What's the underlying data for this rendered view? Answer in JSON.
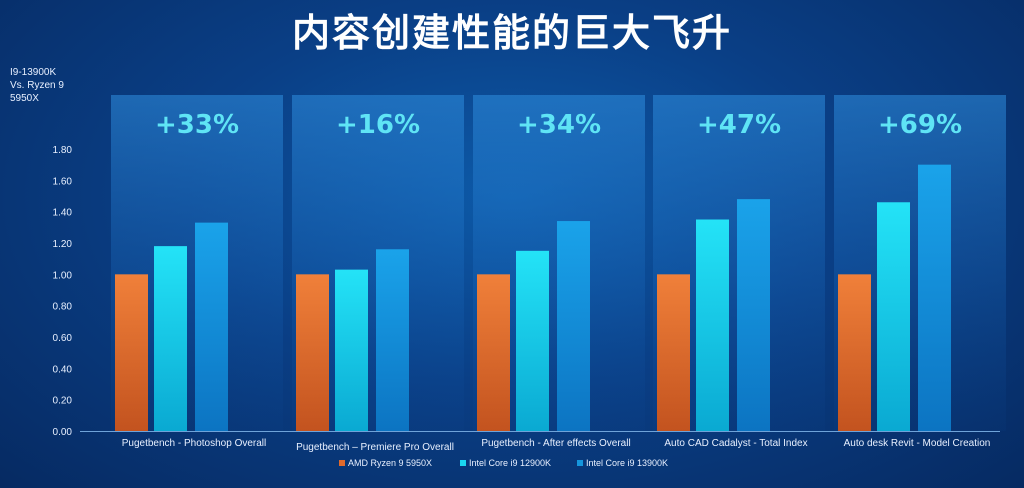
{
  "title": "内容创建性能的巨大飞升",
  "y_caption": [
    "I9-13900K",
    "Vs. Ryzen 9",
    "5950X"
  ],
  "colors": {
    "AMD Ryzen 9 5950X": "#e06a2c",
    "Intel Core i9 12900K": "#1ad8f0",
    "Intel Core i9 13900K": "#1596dc",
    "highlight": "#5fe4f5"
  },
  "chart_data": {
    "type": "bar",
    "categories": [
      "Pugetbench - Photoshop Overall",
      "Pugetbench – Premiere Pro Overall",
      "Pugetbench - After effects Overall",
      "Auto CAD Cadalyst - Total Index",
      "Auto desk Revit - Model Creation"
    ],
    "series": [
      {
        "name": "AMD Ryzen 9 5950X",
        "values": [
          1.0,
          1.0,
          1.0,
          1.0,
          1.0
        ]
      },
      {
        "name": "Intel Core i9 12900K",
        "values": [
          1.18,
          1.03,
          1.15,
          1.35,
          1.46
        ]
      },
      {
        "name": "Intel Core i9 13900K",
        "values": [
          1.33,
          1.16,
          1.34,
          1.48,
          1.7
        ]
      }
    ],
    "annotations": [
      "+33%",
      "+16%",
      "+34%",
      "+47%",
      "+69%"
    ],
    "yticks": [
      "0.00",
      "0.20",
      "0.40",
      "0.60",
      "0.80",
      "1.00",
      "1.20",
      "1.40",
      "1.60",
      "1.80"
    ],
    "ylim": [
      0,
      1.8
    ],
    "legend_position": "bottom-center",
    "grid": false
  }
}
